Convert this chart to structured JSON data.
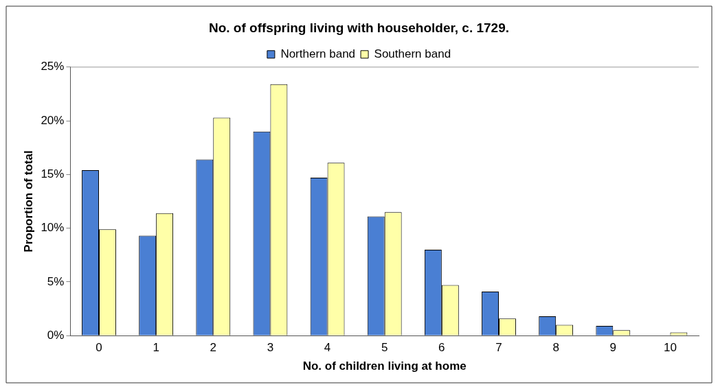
{
  "chart_data": {
    "type": "bar",
    "title": "No. of offspring living with householder, c. 1729.",
    "xlabel": "No. of children living at home",
    "ylabel": "Proportion of total",
    "categories": [
      "0",
      "1",
      "2",
      "3",
      "4",
      "5",
      "6",
      "7",
      "8",
      "9",
      "10"
    ],
    "series": [
      {
        "name": "Northern band",
        "color": "#4a7fd3",
        "values": [
          15.4,
          9.3,
          16.4,
          19.0,
          14.7,
          11.1,
          8.0,
          4.1,
          1.8,
          0.9,
          0
        ]
      },
      {
        "name": "Southern band",
        "color": "#ffffa8",
        "values": [
          9.9,
          11.4,
          20.3,
          23.4,
          16.1,
          11.5,
          4.7,
          1.6,
          1.0,
          0.5,
          0.3
        ]
      }
    ],
    "ylim": [
      0,
      25
    ],
    "yticks": [
      {
        "value": 0,
        "label": "0%"
      },
      {
        "value": 5,
        "label": "5%"
      },
      {
        "value": 10,
        "label": "10%"
      },
      {
        "value": 15,
        "label": "15%"
      },
      {
        "value": 20,
        "label": "20%"
      },
      {
        "value": 25,
        "label": "25%"
      }
    ],
    "grid": false,
    "legend": "top"
  }
}
